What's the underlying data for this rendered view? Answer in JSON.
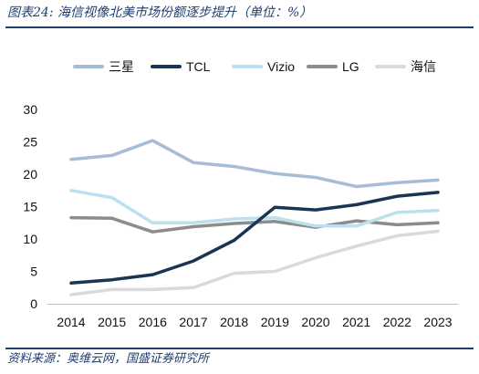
{
  "figure": {
    "title": "图表24:  海信视像北美市场份额逐步提升（单位：%）",
    "source": "资料来源：奥维云网，国盛证券研究所"
  },
  "colors": {
    "frame": "#1f3d70",
    "三星": "#a7bdd6",
    "TCL": "#1c3454",
    "Vizio": "#b9e1ef",
    "LG": "#8c8c8c",
    "海信": "#dadada"
  },
  "chart_data": {
    "type": "line",
    "title": "",
    "xlabel": "",
    "ylabel": "",
    "categories": [
      "2014",
      "2015",
      "2016",
      "2017",
      "2018",
      "2019",
      "2020",
      "2021",
      "2022",
      "2023"
    ],
    "y_ticks": [
      0,
      5,
      10,
      15,
      20,
      25,
      30
    ],
    "ylim": [
      0,
      30
    ],
    "grid": false,
    "legend_position": "top",
    "series": [
      {
        "name": "三星",
        "values": [
          22.3,
          22.9,
          25.2,
          21.8,
          21.2,
          20.1,
          19.5,
          18.1,
          18.7,
          19.1
        ]
      },
      {
        "name": "TCL",
        "values": [
          3.2,
          3.7,
          4.5,
          6.6,
          9.8,
          14.9,
          14.5,
          15.3,
          16.6,
          17.2
        ]
      },
      {
        "name": "Vizio",
        "values": [
          17.5,
          16.4,
          12.5,
          12.5,
          13.1,
          13.3,
          12.0,
          12.0,
          14.1,
          14.4
        ]
      },
      {
        "name": "LG",
        "values": [
          13.3,
          13.2,
          11.1,
          11.9,
          12.4,
          12.7,
          11.8,
          12.8,
          12.2,
          12.5
        ]
      },
      {
        "name": "海信",
        "values": [
          1.4,
          2.2,
          2.2,
          2.5,
          4.7,
          5.0,
          7.1,
          8.9,
          10.5,
          11.2
        ]
      }
    ]
  }
}
